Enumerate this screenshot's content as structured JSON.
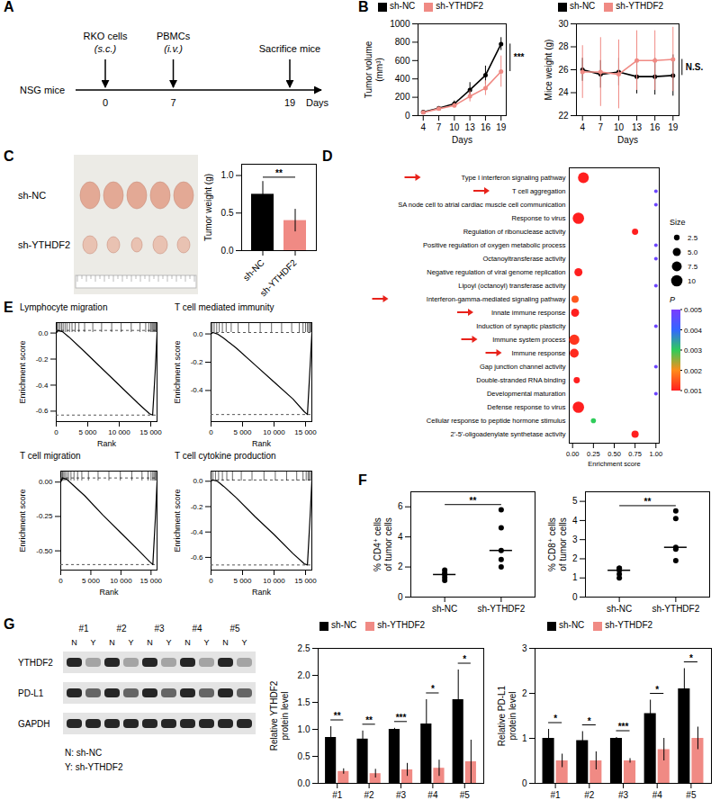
{
  "diagram": {
    "panel": "A",
    "subject": "NSG mice",
    "axis_label": "Days",
    "events": [
      {
        "day": 0,
        "label": "RKO cells",
        "route": "(s.c.)"
      },
      {
        "day": 7,
        "label": "PBMCs",
        "route": "(i.v.)"
      },
      {
        "day": 19,
        "label": "Sacrifice mice"
      }
    ]
  },
  "image": {
    "panel": "C",
    "rows": [
      "sh-NC",
      "sh-YTHDF2"
    ]
  },
  "blot": {
    "panel": "G",
    "samples": [
      "#1",
      "#2",
      "#3",
      "#4",
      "#5"
    ],
    "lanes": [
      "N",
      "Y"
    ],
    "rows": [
      "YTHDF2",
      "PD-L1",
      "GAPDH"
    ],
    "key": [
      "N: sh-NC",
      "Y: sh-YTHDF2"
    ]
  },
  "chart_data": [
    {
      "panel": "B",
      "type": "line",
      "xlabel": "Days",
      "ylabel": "Tumor volume (mm³)",
      "x": [
        4,
        7,
        10,
        13,
        16,
        19
      ],
      "xlim": [
        3,
        20
      ],
      "xticks": [
        4,
        7,
        10,
        13,
        16,
        19
      ],
      "ylim": [
        0,
        1000
      ],
      "yticks": [
        0,
        200,
        400,
        600,
        800,
        1000
      ],
      "legend": "top",
      "significance": "***",
      "series": [
        {
          "name": "sh-NC",
          "color": "#000000",
          "marker": "circle",
          "values": [
            40,
            80,
            130,
            280,
            440,
            780
          ],
          "errors": [
            8,
            12,
            30,
            80,
            100,
            70
          ]
        },
        {
          "name": "sh-YTHDF2",
          "color": "#f08a84",
          "marker": "circle",
          "values": [
            35,
            75,
            110,
            210,
            300,
            480
          ],
          "errors": [
            8,
            10,
            25,
            60,
            80,
            170
          ]
        }
      ]
    },
    {
      "panel": "B",
      "type": "line",
      "xlabel": "Days",
      "ylabel": "Mice weight (g)",
      "x": [
        4,
        7,
        10,
        13,
        16,
        19
      ],
      "xlim": [
        3,
        20
      ],
      "xticks": [
        4,
        7,
        10,
        13,
        16,
        19
      ],
      "ylim": [
        22,
        30
      ],
      "yticks": [
        22,
        24,
        26,
        28,
        30
      ],
      "legend": "top",
      "significance": "N.S.",
      "series": [
        {
          "name": "sh-NC",
          "color": "#000000",
          "marker": "circle",
          "values": [
            26.0,
            25.6,
            25.8,
            25.4,
            25.4,
            25.5
          ],
          "errors": [
            1.0,
            1.2,
            1.2,
            1.5,
            1.6,
            1.8
          ]
        },
        {
          "name": "sh-YTHDF2",
          "color": "#f08a84",
          "marker": "circle",
          "values": [
            25.8,
            25.8,
            25.6,
            26.8,
            26.8,
            26.9
          ],
          "errors": [
            2.3,
            3.0,
            3.0,
            2.6,
            2.6,
            2.8
          ]
        }
      ]
    },
    {
      "panel": "C",
      "type": "bar",
      "ylabel": "Tumor weight (g)",
      "categories": [
        "sh-NC",
        "sh-YTHDF2"
      ],
      "values": [
        0.75,
        0.4
      ],
      "errors": [
        0.17,
        0.15
      ],
      "colors": [
        "#000000",
        "#f08a84"
      ],
      "ylim": [
        0,
        1.15
      ],
      "yticks": [
        {
          "value": 0,
          "label": "0.0"
        },
        0.5,
        {
          "value": 1,
          "label": "1.0"
        }
      ],
      "significance": "**"
    },
    {
      "panel": "D",
      "type": "scatter",
      "xlabel": "Enrichment score",
      "legend": "right",
      "categories": [
        "Type I interferon signaling pathway",
        "T cell aggregation",
        "SA node cell to atrial cardiac muscle cell communication",
        "Response to virus",
        "Regulation of ribonuclease activity",
        "Positive regulation of oxygen metabolic process",
        "Octanoyltransferase activity",
        "Negative regulation of viral genome replication",
        "Lipoyl (octanoyl) transferase activity",
        "Interferon-gamma-mediated signaling pathway",
        "Innate immune response",
        "Induction of synaptic plasticity",
        "Immune system process",
        "Immune response",
        "Gap junction channel activity",
        "Double-stranded RNA binding",
        "Developmental maturation",
        "Defense response to virus",
        "Cellular response to peptide hormone stimulus",
        "2'-5'-oligoadenylate synthetase activity"
      ],
      "values": [
        0.13,
        1.0,
        1.0,
        0.07,
        0.75,
        1.0,
        1.0,
        0.07,
        1.0,
        0.03,
        0.03,
        1.0,
        0.02,
        0.02,
        1.0,
        0.05,
        1.0,
        0.07,
        0.25,
        0.75
      ],
      "sizes": [
        9,
        1,
        1,
        10,
        3,
        1,
        1,
        5,
        1,
        4,
        5,
        1,
        8,
        6,
        1,
        3,
        1,
        10,
        2,
        4
      ],
      "p_values": [
        0.001,
        0.0048,
        0.0048,
        0.001,
        0.001,
        0.0048,
        0.0048,
        0.001,
        0.0048,
        0.0015,
        0.001,
        0.0048,
        0.0012,
        0.0011,
        0.0048,
        0.001,
        0.0048,
        0.001,
        0.003,
        0.001
      ],
      "highlighted": [
        "Type I interferon signaling pathway",
        "T cell aggregation",
        "Interferon-gamma-mediated signaling pathway",
        "Innate immune response",
        "Immune system process",
        "Immune response"
      ],
      "xlim": [
        -0.04,
        1.04
      ],
      "xticks": [
        {
          "value": 0,
          "label": "0.00"
        },
        0.25,
        {
          "value": 0.5,
          "label": "0.50"
        },
        0.75,
        {
          "value": 1,
          "label": "1.00"
        }
      ],
      "size_legend": {
        "title": "Size",
        "values": [
          2.5,
          {
            "value": 5,
            "label": "5.0"
          },
          7.5,
          10
        ]
      },
      "p_colorbar": {
        "title": "P",
        "range": [
          0.001,
          0.005
        ],
        "ticks": [
          0.001,
          0.002,
          0.003,
          0.004,
          0.005
        ]
      }
    },
    {
      "panel": "E",
      "type": "line",
      "title": "Lymphocyte migration",
      "xlabel": "Rank",
      "ylabel": "Enrichment score",
      "color": "#000000",
      "x": [
        0,
        300,
        1000,
        2000,
        4000,
        7000,
        10000,
        13000,
        14800,
        15300,
        15700,
        16000
      ],
      "values": [
        0,
        0.02,
        0.01,
        -0.03,
        -0.12,
        -0.26,
        -0.4,
        -0.54,
        -0.62,
        -0.63,
        -0.3,
        0
      ],
      "hits": [
        150,
        350,
        600,
        850,
        1100,
        1400,
        1700,
        2100,
        2500,
        3000,
        3600,
        4500,
        5800,
        7200,
        8800,
        10300,
        11900,
        13300,
        14200,
        14700,
        15000,
        15200,
        15350,
        15500,
        15650,
        15800,
        15900
      ],
      "xlim": [
        0,
        16000
      ],
      "xticks": [
        0,
        {
          "value": 5000,
          "label": "5 000"
        },
        {
          "value": 10000,
          "label": "10 000"
        },
        {
          "value": 15000,
          "label": "15 000"
        }
      ],
      "ylim": [
        -0.68,
        0.08
      ],
      "yticks": [
        {
          "value": 0,
          "label": "0.0"
        },
        -0.2,
        -0.4,
        -0.6
      ]
    },
    {
      "panel": "E",
      "type": "line",
      "title": "T cell mediated immunity",
      "xlabel": "Rank",
      "ylabel": "Enrichment score",
      "color": "#000000",
      "x": [
        0,
        300,
        1000,
        2000,
        4000,
        7000,
        10000,
        13000,
        14800,
        15300,
        15700,
        16000
      ],
      "values": [
        0,
        0.01,
        0.0,
        -0.03,
        -0.1,
        -0.22,
        -0.34,
        -0.46,
        -0.55,
        -0.57,
        -0.25,
        0
      ],
      "hits": [
        200,
        500,
        900,
        1300,
        1800,
        2400,
        3200,
        4300,
        6000,
        7800,
        9600,
        11200,
        12800,
        14000,
        14600,
        15000,
        15300,
        15500,
        15700,
        15850
      ],
      "xlim": [
        0,
        16000
      ],
      "xticks": [
        0,
        {
          "value": 5000,
          "label": "5 000"
        },
        {
          "value": 10000,
          "label": "10 000"
        },
        {
          "value": 15000,
          "label": "15 000"
        }
      ],
      "ylim": [
        -0.62,
        0.08
      ],
      "yticks": [
        {
          "value": 0,
          "label": "0.0"
        },
        -0.2,
        -0.4
      ]
    },
    {
      "panel": "E",
      "type": "line",
      "title": "T cell migration",
      "xlabel": "Rank",
      "ylabel": "Enrichment score",
      "color": "#000000",
      "x": [
        0,
        300,
        1000,
        2000,
        4000,
        7000,
        10000,
        13000,
        14800,
        15300,
        15700,
        16000
      ],
      "values": [
        0,
        0.03,
        0.02,
        -0.02,
        -0.1,
        -0.24,
        -0.37,
        -0.5,
        -0.58,
        -0.6,
        -0.28,
        0
      ],
      "hits": [
        100,
        300,
        500,
        700,
        1000,
        1300,
        1700,
        2200,
        2800,
        3500,
        4600,
        6200,
        8000,
        9900,
        11800,
        13500,
        14500,
        15000,
        15300,
        15500,
        15700,
        15900
      ],
      "xlim": [
        0,
        16000
      ],
      "xticks": [
        0,
        {
          "value": 5000,
          "label": "5 000"
        },
        {
          "value": 10000,
          "label": "10 000"
        },
        {
          "value": 15000,
          "label": "15 000"
        }
      ],
      "ylim": [
        -0.64,
        0.08
      ],
      "yticks": [
        {
          "value": 0,
          "label": "0.00"
        },
        -0.25,
        {
          "value": -0.5,
          "label": "-0.50"
        }
      ]
    },
    {
      "panel": "E",
      "type": "line",
      "title": "T cell cytokine production",
      "xlabel": "Rank",
      "ylabel": "Enrichment score",
      "color": "#000000",
      "x": [
        0,
        300,
        1000,
        2000,
        4000,
        7000,
        10000,
        13000,
        14800,
        15300,
        15700,
        16000
      ],
      "values": [
        0,
        0.01,
        0.0,
        -0.04,
        -0.13,
        -0.28,
        -0.42,
        -0.57,
        -0.65,
        -0.66,
        -0.3,
        0
      ],
      "hits": [
        300,
        700,
        1200,
        1800,
        2500,
        3400,
        4800,
        6500,
        8400,
        10200,
        12000,
        13600,
        14600,
        15100,
        15400,
        15600,
        15800
      ],
      "xlim": [
        0,
        16000
      ],
      "xticks": [
        0,
        {
          "value": 5000,
          "label": "5 000"
        },
        {
          "value": 10000,
          "label": "10 000"
        },
        {
          "value": 15000,
          "label": "15 000"
        }
      ],
      "ylim": [
        -0.7,
        0.08
      ],
      "yticks": [
        {
          "value": 0,
          "label": "0.0"
        },
        -0.2,
        -0.4,
        -0.6
      ]
    },
    {
      "panel": "F",
      "type": "scatter",
      "ylabel": "% CD4⁺ cells of tumor cells",
      "categories": [
        "sh-NC",
        "sh-YTHDF2"
      ],
      "values": [
        [
          1.8,
          1.6,
          1.5,
          1.3,
          1.1
        ],
        [
          5.8,
          4.6,
          3.1,
          2.5,
          2.0
        ]
      ],
      "colors": [
        "#000000",
        "#000000"
      ],
      "ylim": [
        0,
        7
      ],
      "yticks": [
        0,
        2,
        4,
        6
      ],
      "significance": "**"
    },
    {
      "panel": "F",
      "type": "scatter",
      "ylabel": "% CD8⁺ cells of tumor cells",
      "categories": [
        "sh-NC",
        "sh-YTHDF2"
      ],
      "values": [
        [
          1.5,
          1.5,
          1.4,
          1.2,
          1.0
        ],
        [
          4.5,
          4.1,
          2.6,
          2.5,
          1.9
        ]
      ],
      "colors": [
        "#000000",
        "#000000"
      ],
      "ylim": [
        0,
        5.5
      ],
      "yticks": [
        0,
        1,
        2,
        3,
        4,
        5
      ],
      "significance": "**"
    },
    {
      "panel": "G",
      "type": "bar",
      "ylabel": "Relative YTHDF2 protein level",
      "categories": [
        "#1",
        "#2",
        "#3",
        "#4",
        "#5"
      ],
      "legend": "top",
      "series": [
        {
          "name": "sh-NC",
          "color": "#000000",
          "values": [
            0.85,
            0.82,
            1.0,
            1.1,
            1.55
          ],
          "errors": [
            0.2,
            0.15,
            0.02,
            0.45,
            0.55
          ]
        },
        {
          "name": "sh-YTHDF2",
          "color": "#f08a84",
          "values": [
            0.22,
            0.18,
            0.25,
            0.28,
            0.4
          ],
          "errors": [
            0.05,
            0.08,
            0.12,
            0.15,
            0.4
          ]
        }
      ],
      "significance": [
        "**",
        "**",
        "***",
        "*",
        "*"
      ],
      "ylim": [
        0,
        2.5
      ],
      "yticks": [
        {
          "value": 0,
          "label": "0.0"
        },
        0.5,
        {
          "value": 1,
          "label": "1.0"
        },
        1.5,
        {
          "value": 2,
          "label": "2.0"
        },
        2.5
      ]
    },
    {
      "panel": "G",
      "type": "bar",
      "ylabel": "Relative PD-L1 protein level",
      "categories": [
        "#1",
        "#2",
        "#3",
        "#4",
        "#5"
      ],
      "legend": "top",
      "series": [
        {
          "name": "sh-NC",
          "color": "#000000",
          "values": [
            1.0,
            0.95,
            1.0,
            1.55,
            2.1
          ],
          "errors": [
            0.2,
            0.2,
            0.02,
            0.3,
            0.45
          ]
        },
        {
          "name": "sh-YTHDF2",
          "color": "#f08a84",
          "values": [
            0.5,
            0.5,
            0.5,
            0.75,
            1.0
          ],
          "errors": [
            0.15,
            0.2,
            0.05,
            0.25,
            0.25
          ]
        }
      ],
      "significance": [
        "*",
        "*",
        "***",
        "*",
        "*"
      ],
      "ylim": [
        0,
        3
      ],
      "yticks": [
        0,
        1,
        2,
        3
      ]
    }
  ]
}
